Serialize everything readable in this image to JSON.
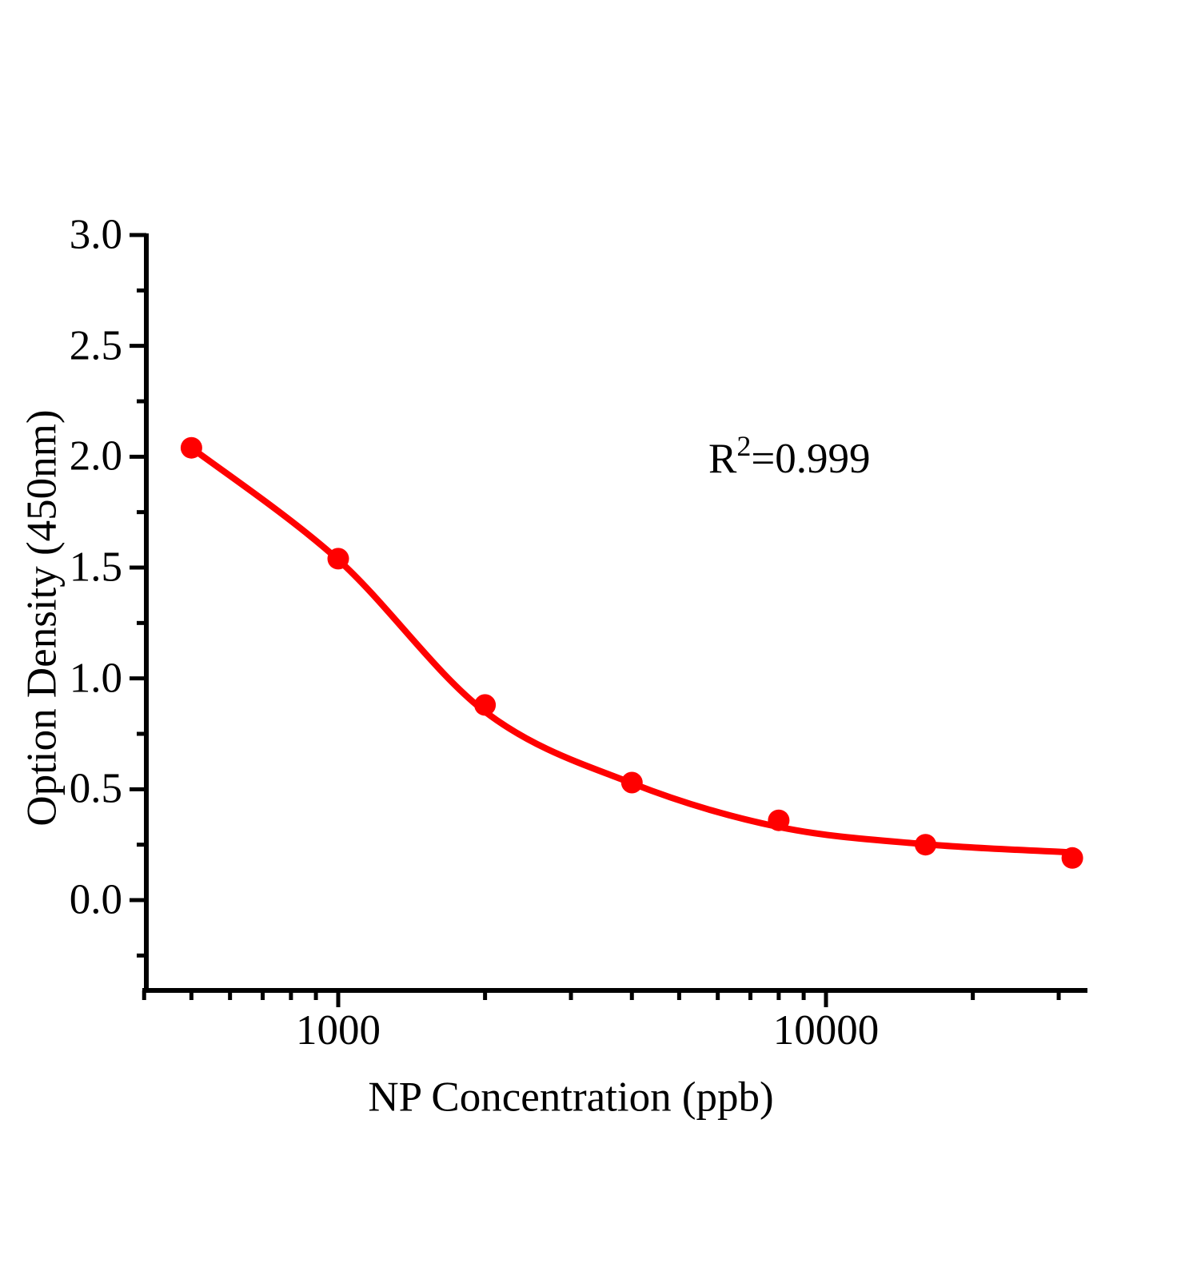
{
  "figure": {
    "background": "#ffffff",
    "annotation": {
      "r_label": "R",
      "exponent": "2",
      "value": "=0.999"
    },
    "x_axis": {
      "title": "NP Concentration (ppb)",
      "scale": "log",
      "major_ticks": [
        {
          "value": 1000,
          "label": "1000"
        },
        {
          "value": 10000,
          "label": "10000"
        }
      ],
      "minor_ticks": [
        400,
        500,
        600,
        700,
        800,
        900,
        2000,
        3000,
        4000,
        5000,
        6000,
        7000,
        8000,
        9000,
        20000,
        30000
      ]
    },
    "y_axis": {
      "title": "Option Density (450nm)",
      "major_ticks": [
        {
          "value": 3.0,
          "label": "3.0"
        },
        {
          "value": 2.5,
          "label": "2.5"
        },
        {
          "value": 2.0,
          "label": "2.0"
        },
        {
          "value": 1.5,
          "label": "1.5"
        },
        {
          "value": 1.0,
          "label": "1.0"
        },
        {
          "value": 0.5,
          "label": "0.5"
        },
        {
          "value": 0.0,
          "label": "0.0"
        }
      ],
      "minor_ticks": [
        2.75,
        2.25,
        1.75,
        1.25,
        0.75,
        0.25,
        -0.25
      ]
    }
  },
  "chart_data": {
    "type": "scatter",
    "title": "",
    "xlabel": "NP Concentration (ppb)",
    "ylabel": "Option Density (450nm)",
    "x_scale": "log",
    "x": [
      500,
      1000,
      2000,
      4000,
      8000,
      16000,
      32000
    ],
    "y": [
      2.04,
      1.54,
      0.88,
      0.53,
      0.36,
      0.25,
      0.19
    ],
    "fit_curve": {
      "x": [
        500,
        1000,
        2000,
        4000,
        8000,
        16000,
        32000
      ],
      "y": [
        2.04,
        1.535,
        0.85,
        0.527,
        0.33,
        0.252,
        0.215
      ]
    },
    "annotation": "R²=0.999",
    "xlim": [
      395,
      34000
    ],
    "ylim": [
      -0.41,
      3.0
    ],
    "grid": false,
    "legend": false,
    "point_color": "#ff0000",
    "line_color": "#ff0000",
    "axis_color": "#000000"
  }
}
